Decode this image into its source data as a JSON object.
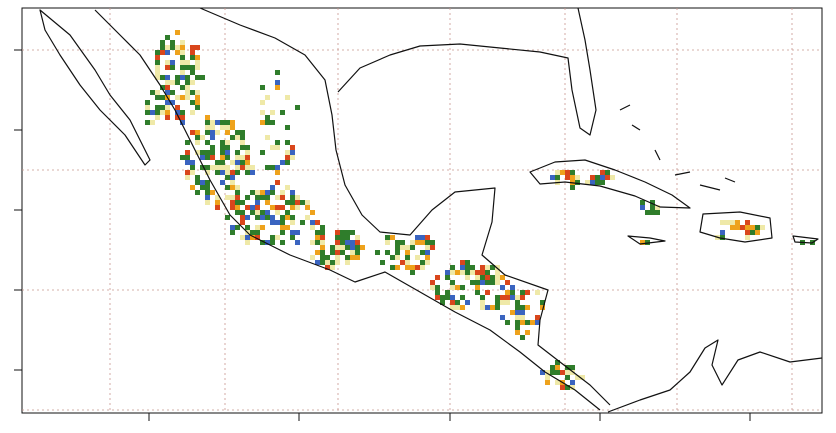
{
  "map": {
    "grid": true,
    "cell_colors": [
      "#2f7d2b",
      "#2f7d2b",
      "#2f7d2b",
      "#3a64c0",
      "#efe9a8",
      "#efe9a8",
      "#eea21c",
      "#d9461c"
    ]
  }
}
